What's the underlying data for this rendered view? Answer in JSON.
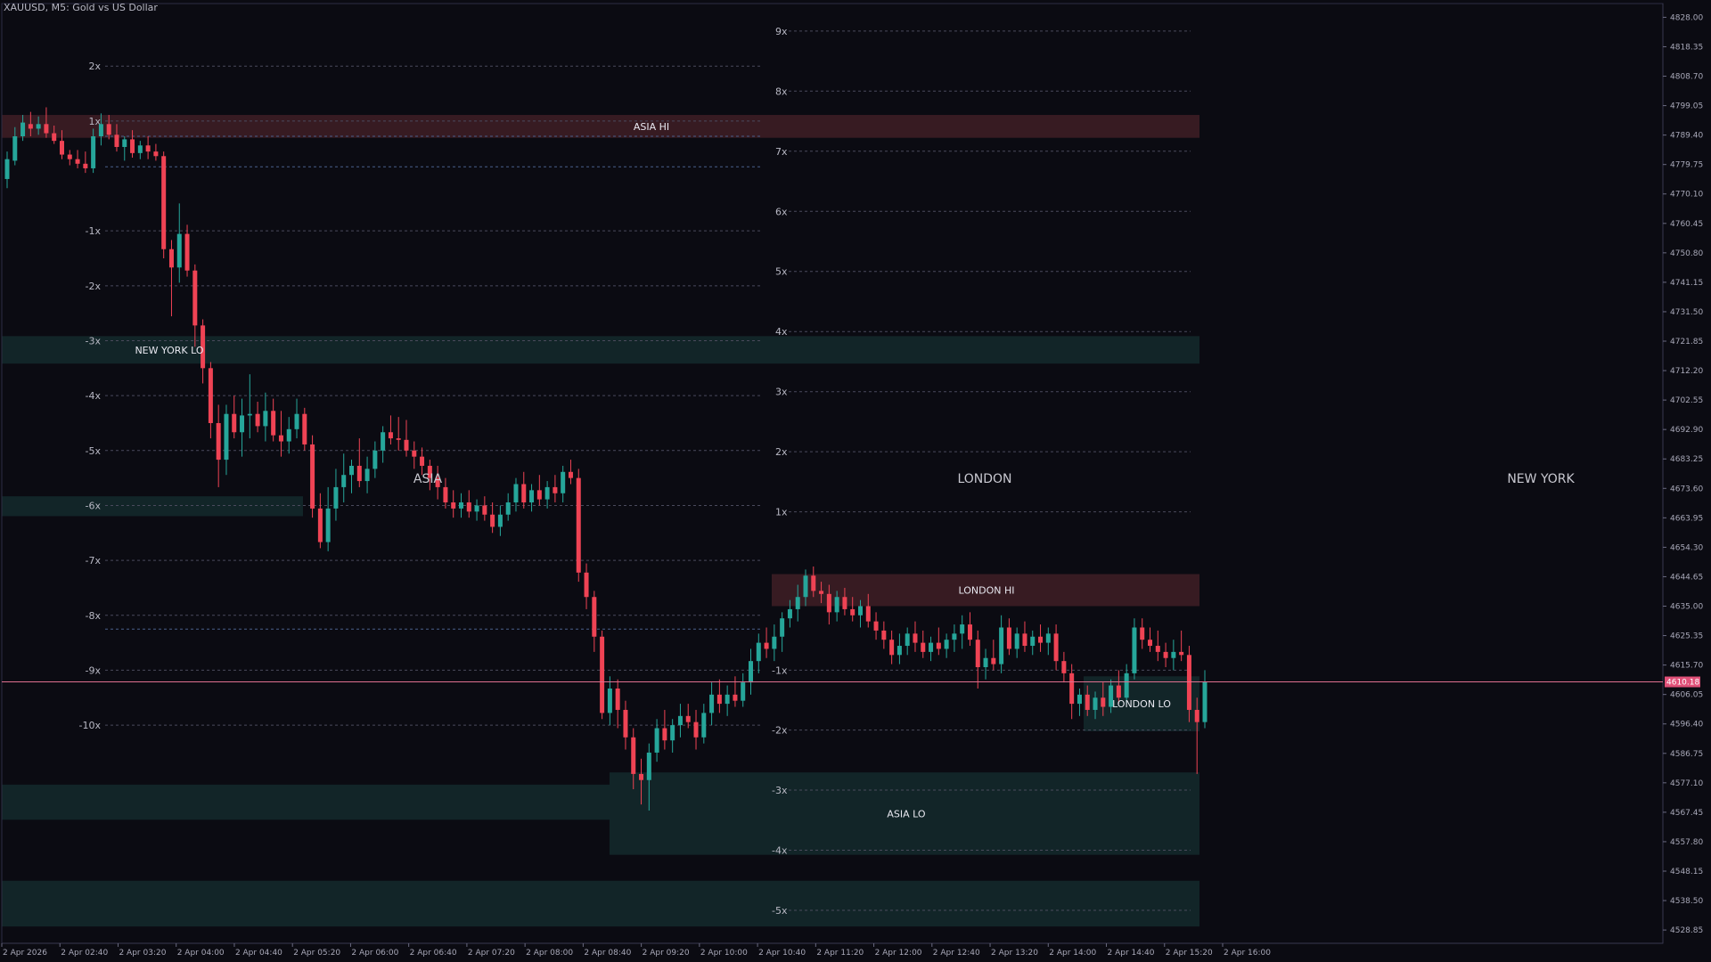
{
  "window": {
    "symbol": "XAUUSD",
    "timeframe": "M5",
    "description": "Gold vs US Dollar",
    "title_text": "XAUUSD, M5:  Gold vs US Dollar"
  },
  "colors": {
    "background": "#0b0b12",
    "bull": "#26a69a",
    "bear": "#ef4354",
    "grid_dash": "#3a3a4a",
    "price_line": "#e07090",
    "price_badge": "#e05078",
    "zone_red": "#3a1c24",
    "zone_green": "#13272a",
    "text": "#c8c8d0",
    "axis": "#2a2a38"
  },
  "price_axis": {
    "labels": [
      "4828.00",
      "4818.35",
      "4808.70",
      "4799.05",
      "4789.40",
      "4779.75",
      "4770.10",
      "4760.45",
      "4750.80",
      "4741.15",
      "4731.50",
      "4721.85",
      "4712.20",
      "4702.55",
      "4692.90",
      "4683.25",
      "4673.60",
      "4663.95",
      "4654.30",
      "4644.65",
      "4635.00",
      "4625.35",
      "4615.70",
      "4606.05",
      "4596.40",
      "4586.75",
      "4577.10",
      "4567.45",
      "4557.80",
      "4548.15",
      "4538.50",
      "4528.85"
    ],
    "current_price": "4610.18"
  },
  "time_axis": {
    "labels": [
      "2 Apr 2026",
      "2 Apr 02:40",
      "2 Apr 03:20",
      "2 Apr 04:00",
      "2 Apr 04:40",
      "2 Apr 05:20",
      "2 Apr 06:00",
      "2 Apr 06:40",
      "2 Apr 07:20",
      "2 Apr 08:00",
      "2 Apr 08:40",
      "2 Apr 09:20",
      "2 Apr 10:00",
      "2 Apr 10:40",
      "2 Apr 11:20",
      "2 Apr 12:00",
      "2 Apr 12:40",
      "2 Apr 13:20",
      "2 Apr 14:00",
      "2 Apr 14:40",
      "2 Apr 15:20",
      "2 Apr 16:00"
    ]
  },
  "sessions": {
    "asia": "ASIA",
    "london": "LONDON",
    "new_york": "NEW YORK"
  },
  "level_labels": {
    "asia_hi": "ASIA HI",
    "asia_lo": "ASIA LO",
    "london_hi": "LONDON HI",
    "london_lo": "LONDON LO",
    "new_york_lo": "NEW YORK LO"
  },
  "ny_projection": {
    "labels": [
      "2x",
      "1x",
      "-1x",
      "-2x",
      "-3x",
      "-4x",
      "-5x",
      "-6x",
      "-7x",
      "-8x",
      "-9x",
      "-10x"
    ],
    "prices": [
      4812.0,
      4794.0,
      4758.0,
      4740.0,
      4722.0,
      4704.0,
      4686.0,
      4668.0,
      4650.0,
      4632.0,
      4614.0,
      4596.0
    ]
  },
  "asia_projection": {
    "labels": [
      "9x",
      "8x",
      "7x",
      "6x",
      "5x",
      "4x",
      "3x",
      "2x",
      "1x"
    ],
    "prices": [
      4823.5,
      4803.8,
      4784.1,
      4764.4,
      4744.7,
      4725.0,
      4705.3,
      4685.6,
      4665.9
    ]
  },
  "london_projection": {
    "labels": [
      "-1x",
      "-2x",
      "-3x",
      "-4x",
      "-5x"
    ],
    "prices": [
      4614.0,
      4594.4,
      4574.7,
      4555.0,
      4535.3
    ]
  },
  "chart_data": {
    "type": "candlestick",
    "symbol": "XAUUSD",
    "timeframe": "M5",
    "ylim": [
      4524.5,
      4832.5
    ],
    "grid": false,
    "current_price": 4610.18,
    "zones": [
      {
        "name": "ASIA HI",
        "top": 4796.0,
        "bottom": 4788.5,
        "color": "zone_red"
      },
      {
        "name": "NEW YORK LO",
        "top": 4723.5,
        "bottom": 4714.5,
        "color": "zone_green"
      },
      {
        "name": "",
        "top": 4671.0,
        "bottom": 4664.5,
        "color": "zone_green"
      },
      {
        "name": "LONDON HI",
        "top": 4645.5,
        "bottom": 4635.0,
        "color": "zone_red"
      },
      {
        "name": "LONDON LO",
        "top": 4612.0,
        "bottom": 4594.0,
        "color": "zone_green"
      },
      {
        "name": "ASIA LO",
        "top": 4580.5,
        "bottom": 4553.5,
        "color": "zone_green"
      },
      {
        "name": "",
        "top": 4576.5,
        "bottom": 4565.0,
        "color": "zone_green"
      },
      {
        "name": "",
        "top": 4545.0,
        "bottom": 4530.0,
        "color": "zone_green"
      }
    ],
    "candles": [
      {
        "o": 4775.0,
        "h": 4784.0,
        "l": 4772.0,
        "c": 4781.5
      },
      {
        "o": 4781.0,
        "h": 4792.0,
        "l": 4779.5,
        "c": 4789.0
      },
      {
        "o": 4789.0,
        "h": 4796.0,
        "l": 4787.5,
        "c": 4793.5
      },
      {
        "o": 4793.0,
        "h": 4797.0,
        "l": 4789.0,
        "c": 4791.5
      },
      {
        "o": 4791.5,
        "h": 4795.5,
        "l": 4789.5,
        "c": 4793.0
      },
      {
        "o": 4793.0,
        "h": 4798.5,
        "l": 4788.5,
        "c": 4790.0
      },
      {
        "o": 4790.0,
        "h": 4792.5,
        "l": 4786.5,
        "c": 4787.5
      },
      {
        "o": 4787.5,
        "h": 4791.0,
        "l": 4781.5,
        "c": 4783.0
      },
      {
        "o": 4783.0,
        "h": 4784.5,
        "l": 4779.5,
        "c": 4781.5
      },
      {
        "o": 4781.5,
        "h": 4784.5,
        "l": 4778.5,
        "c": 4780.0
      },
      {
        "o": 4780.0,
        "h": 4784.0,
        "l": 4777.0,
        "c": 4778.5
      },
      {
        "o": 4778.5,
        "h": 4791.5,
        "l": 4777.0,
        "c": 4789.0
      },
      {
        "o": 4789.0,
        "h": 4796.5,
        "l": 4786.0,
        "c": 4793.0
      },
      {
        "o": 4793.0,
        "h": 4796.0,
        "l": 4788.0,
        "c": 4789.5
      },
      {
        "o": 4789.5,
        "h": 4793.0,
        "l": 4784.0,
        "c": 4785.5
      },
      {
        "o": 4785.5,
        "h": 4789.0,
        "l": 4781.0,
        "c": 4788.0
      },
      {
        "o": 4788.0,
        "h": 4791.0,
        "l": 4782.0,
        "c": 4783.5
      },
      {
        "o": 4783.5,
        "h": 4787.5,
        "l": 4781.5,
        "c": 4786.0
      },
      {
        "o": 4786.0,
        "h": 4789.0,
        "l": 4781.5,
        "c": 4784.0
      },
      {
        "o": 4784.0,
        "h": 4786.5,
        "l": 4781.0,
        "c": 4782.5
      },
      {
        "o": 4782.5,
        "h": 4784.0,
        "l": 4749.0,
        "c": 4752.0
      },
      {
        "o": 4752.0,
        "h": 4755.0,
        "l": 4730.0,
        "c": 4746.0
      },
      {
        "o": 4746.0,
        "h": 4767.0,
        "l": 4741.0,
        "c": 4757.0
      },
      {
        "o": 4757.0,
        "h": 4760.0,
        "l": 4743.0,
        "c": 4745.0
      },
      {
        "o": 4745.0,
        "h": 4747.0,
        "l": 4720.0,
        "c": 4727.0
      },
      {
        "o": 4727.0,
        "h": 4729.0,
        "l": 4708.0,
        "c": 4713.0
      },
      {
        "o": 4713.0,
        "h": 4715.0,
        "l": 4690.0,
        "c": 4695.0
      },
      {
        "o": 4695.0,
        "h": 4701.0,
        "l": 4674.0,
        "c": 4683.0
      },
      {
        "o": 4683.0,
        "h": 4701.0,
        "l": 4678.0,
        "c": 4698.0
      },
      {
        "o": 4698.0,
        "h": 4704.0,
        "l": 4690.0,
        "c": 4692.0
      },
      {
        "o": 4692.0,
        "h": 4703.0,
        "l": 4684.0,
        "c": 4697.5
      },
      {
        "o": 4697.5,
        "h": 4711.0,
        "l": 4690.0,
        "c": 4698.0
      },
      {
        "o": 4698.0,
        "h": 4702.0,
        "l": 4692.0,
        "c": 4694.0
      },
      {
        "o": 4694.0,
        "h": 4705.0,
        "l": 4689.0,
        "c": 4699.0
      },
      {
        "o": 4699.0,
        "h": 4703.0,
        "l": 4689.0,
        "c": 4691.0
      },
      {
        "o": 4691.0,
        "h": 4699.0,
        "l": 4684.0,
        "c": 4689.0
      },
      {
        "o": 4689.0,
        "h": 4697.0,
        "l": 4685.0,
        "c": 4693.0
      },
      {
        "o": 4693.0,
        "h": 4703.0,
        "l": 4690.0,
        "c": 4698.0
      },
      {
        "o": 4698.0,
        "h": 4700.0,
        "l": 4686.0,
        "c": 4688.0
      },
      {
        "o": 4688.0,
        "h": 4691.0,
        "l": 4664.0,
        "c": 4667.0
      },
      {
        "o": 4667.0,
        "h": 4672.0,
        "l": 4654.0,
        "c": 4656.0
      },
      {
        "o": 4656.0,
        "h": 4674.0,
        "l": 4653.0,
        "c": 4667.0
      },
      {
        "o": 4667.0,
        "h": 4680.0,
        "l": 4663.0,
        "c": 4674.0
      },
      {
        "o": 4674.0,
        "h": 4685.0,
        "l": 4669.0,
        "c": 4678.0
      },
      {
        "o": 4678.0,
        "h": 4683.0,
        "l": 4672.0,
        "c": 4681.0
      },
      {
        "o": 4681.0,
        "h": 4690.0,
        "l": 4674.0,
        "c": 4676.0
      },
      {
        "o": 4676.0,
        "h": 4684.0,
        "l": 4672.0,
        "c": 4680.0
      },
      {
        "o": 4680.0,
        "h": 4689.0,
        "l": 4677.0,
        "c": 4686.0
      },
      {
        "o": 4686.0,
        "h": 4694.0,
        "l": 4682.0,
        "c": 4692.0
      },
      {
        "o": 4692.0,
        "h": 4697.5,
        "l": 4688.0,
        "c": 4690.0
      },
      {
        "o": 4690.0,
        "h": 4697.0,
        "l": 4686.0,
        "c": 4689.5
      },
      {
        "o": 4689.5,
        "h": 4696.0,
        "l": 4684.0,
        "c": 4686.0
      },
      {
        "o": 4686.0,
        "h": 4689.0,
        "l": 4680.0,
        "c": 4684.0
      },
      {
        "o": 4684.0,
        "h": 4687.0,
        "l": 4678.0,
        "c": 4681.0
      },
      {
        "o": 4681.0,
        "h": 4683.0,
        "l": 4673.0,
        "c": 4677.0
      },
      {
        "o": 4677.0,
        "h": 4681.0,
        "l": 4670.0,
        "c": 4674.0
      },
      {
        "o": 4674.0,
        "h": 4677.0,
        "l": 4667.0,
        "c": 4669.0
      },
      {
        "o": 4669.0,
        "h": 4673.0,
        "l": 4664.0,
        "c": 4667.0
      },
      {
        "o": 4667.0,
        "h": 4672.0,
        "l": 4664.0,
        "c": 4669.0
      },
      {
        "o": 4669.0,
        "h": 4673.0,
        "l": 4664.0,
        "c": 4666.0
      },
      {
        "o": 4666.0,
        "h": 4670.0,
        "l": 4663.0,
        "c": 4668.0
      },
      {
        "o": 4668.0,
        "h": 4671.0,
        "l": 4663.0,
        "c": 4665.0
      },
      {
        "o": 4665.0,
        "h": 4669.0,
        "l": 4659.0,
        "c": 4661.0
      },
      {
        "o": 4661.0,
        "h": 4668.0,
        "l": 4658.0,
        "c": 4665.0
      },
      {
        "o": 4665.0,
        "h": 4672.0,
        "l": 4663.0,
        "c": 4669.0
      },
      {
        "o": 4669.0,
        "h": 4677.0,
        "l": 4666.0,
        "c": 4675.0
      },
      {
        "o": 4675.0,
        "h": 4679.0,
        "l": 4667.0,
        "c": 4669.0
      },
      {
        "o": 4669.0,
        "h": 4675.0,
        "l": 4666.0,
        "c": 4673.0
      },
      {
        "o": 4673.0,
        "h": 4678.0,
        "l": 4668.0,
        "c": 4670.0
      },
      {
        "o": 4670.0,
        "h": 4676.0,
        "l": 4667.0,
        "c": 4674.0
      },
      {
        "o": 4674.0,
        "h": 4678.0,
        "l": 4669.0,
        "c": 4672.0
      },
      {
        "o": 4672.0,
        "h": 4681.0,
        "l": 4669.0,
        "c": 4679.0
      },
      {
        "o": 4679.0,
        "h": 4683.0,
        "l": 4675.0,
        "c": 4677.0
      },
      {
        "o": 4677.0,
        "h": 4680.0,
        "l": 4643.0,
        "c": 4646.0
      },
      {
        "o": 4646.0,
        "h": 4649.0,
        "l": 4634.0,
        "c": 4638.0
      },
      {
        "o": 4638.0,
        "h": 4640.0,
        "l": 4620.0,
        "c": 4625.0
      },
      {
        "o": 4625.0,
        "h": 4627.0,
        "l": 4598.0,
        "c": 4600.0
      },
      {
        "o": 4600.0,
        "h": 4612.0,
        "l": 4596.0,
        "c": 4608.0
      },
      {
        "o": 4608.0,
        "h": 4611.0,
        "l": 4595.0,
        "c": 4601.0
      },
      {
        "o": 4601.0,
        "h": 4604.0,
        "l": 4588.0,
        "c": 4592.0
      },
      {
        "o": 4592.0,
        "h": 4595.0,
        "l": 4575.0,
        "c": 4580.0
      },
      {
        "o": 4580.0,
        "h": 4585.0,
        "l": 4570.0,
        "c": 4578.0
      },
      {
        "o": 4578.0,
        "h": 4590.0,
        "l": 4568.0,
        "c": 4587.0
      },
      {
        "o": 4587.0,
        "h": 4598.0,
        "l": 4584.0,
        "c": 4595.0
      },
      {
        "o": 4595.0,
        "h": 4601.0,
        "l": 4588.0,
        "c": 4591.0
      },
      {
        "o": 4591.0,
        "h": 4598.0,
        "l": 4587.0,
        "c": 4596.0
      },
      {
        "o": 4596.0,
        "h": 4603.0,
        "l": 4592.0,
        "c": 4599.0
      },
      {
        "o": 4599.0,
        "h": 4603.0,
        "l": 4595.0,
        "c": 4597.0
      },
      {
        "o": 4597.0,
        "h": 4601.0,
        "l": 4588.0,
        "c": 4592.0
      },
      {
        "o": 4592.0,
        "h": 4603.0,
        "l": 4590.0,
        "c": 4600.0
      },
      {
        "o": 4600.0,
        "h": 4610.0,
        "l": 4596.0,
        "c": 4606.0
      },
      {
        "o": 4606.0,
        "h": 4611.0,
        "l": 4600.0,
        "c": 4603.0
      },
      {
        "o": 4603.0,
        "h": 4609.0,
        "l": 4599.0,
        "c": 4606.0
      },
      {
        "o": 4606.0,
        "h": 4612.0,
        "l": 4602.0,
        "c": 4604.0
      },
      {
        "o": 4604.0,
        "h": 4613.0,
        "l": 4602.0,
        "c": 4610.0
      },
      {
        "o": 4610.0,
        "h": 4621.0,
        "l": 4606.0,
        "c": 4617.0
      },
      {
        "o": 4617.0,
        "h": 4626.0,
        "l": 4613.0,
        "c": 4623.0
      },
      {
        "o": 4623.0,
        "h": 4628.0,
        "l": 4618.0,
        "c": 4621.0
      },
      {
        "o": 4621.0,
        "h": 4629.0,
        "l": 4617.0,
        "c": 4625.0
      },
      {
        "o": 4625.0,
        "h": 4633.0,
        "l": 4620.0,
        "c": 4631.0
      },
      {
        "o": 4631.0,
        "h": 4637.0,
        "l": 4628.0,
        "c": 4634.0
      },
      {
        "o": 4634.0,
        "h": 4642.0,
        "l": 4630.0,
        "c": 4638.0
      },
      {
        "o": 4638.0,
        "h": 4647.0,
        "l": 4635.0,
        "c": 4645.0
      },
      {
        "o": 4645.0,
        "h": 4648.0,
        "l": 4638.0,
        "c": 4640.0
      },
      {
        "o": 4640.0,
        "h": 4643.0,
        "l": 4636.0,
        "c": 4639.0
      },
      {
        "o": 4639.0,
        "h": 4642.0,
        "l": 4629.0,
        "c": 4633.0
      },
      {
        "o": 4633.0,
        "h": 4640.0,
        "l": 4630.0,
        "c": 4638.0
      },
      {
        "o": 4638.0,
        "h": 4641.0,
        "l": 4632.0,
        "c": 4634.0
      },
      {
        "o": 4634.0,
        "h": 4638.0,
        "l": 4630.0,
        "c": 4632.0
      },
      {
        "o": 4632.0,
        "h": 4637.0,
        "l": 4628.0,
        "c": 4635.0
      },
      {
        "o": 4635.0,
        "h": 4639.0,
        "l": 4628.0,
        "c": 4630.0
      },
      {
        "o": 4630.0,
        "h": 4633.0,
        "l": 4624.0,
        "c": 4627.0
      },
      {
        "o": 4627.0,
        "h": 4630.0,
        "l": 4621.0,
        "c": 4624.0
      },
      {
        "o": 4624.0,
        "h": 4627.0,
        "l": 4616.0,
        "c": 4619.0
      },
      {
        "o": 4619.0,
        "h": 4626.0,
        "l": 4616.0,
        "c": 4622.0
      },
      {
        "o": 4622.0,
        "h": 4628.0,
        "l": 4619.0,
        "c": 4626.0
      },
      {
        "o": 4626.0,
        "h": 4630.0,
        "l": 4620.0,
        "c": 4623.0
      },
      {
        "o": 4623.0,
        "h": 4627.0,
        "l": 4618.0,
        "c": 4620.0
      },
      {
        "o": 4620.0,
        "h": 4625.0,
        "l": 4617.0,
        "c": 4623.0
      },
      {
        "o": 4623.0,
        "h": 4628.0,
        "l": 4619.0,
        "c": 4621.0
      },
      {
        "o": 4621.0,
        "h": 4626.0,
        "l": 4618.0,
        "c": 4624.0
      },
      {
        "o": 4624.0,
        "h": 4629.0,
        "l": 4620.0,
        "c": 4626.0
      },
      {
        "o": 4626.0,
        "h": 4632.0,
        "l": 4621.0,
        "c": 4629.0
      },
      {
        "o": 4629.0,
        "h": 4633.0,
        "l": 4622.0,
        "c": 4624.0
      },
      {
        "o": 4624.0,
        "h": 4627.0,
        "l": 4608.0,
        "c": 4615.0
      },
      {
        "o": 4615.0,
        "h": 4621.0,
        "l": 4611.0,
        "c": 4618.0
      },
      {
        "o": 4618.0,
        "h": 4624.0,
        "l": 4614.0,
        "c": 4616.0
      },
      {
        "o": 4616.0,
        "h": 4632.0,
        "l": 4613.0,
        "c": 4628.0
      },
      {
        "o": 4628.0,
        "h": 4631.0,
        "l": 4619.0,
        "c": 4621.0
      },
      {
        "o": 4621.0,
        "h": 4628.0,
        "l": 4618.0,
        "c": 4626.0
      },
      {
        "o": 4626.0,
        "h": 4630.0,
        "l": 4620.0,
        "c": 4622.0
      },
      {
        "o": 4622.0,
        "h": 4627.0,
        "l": 4619.0,
        "c": 4625.0
      },
      {
        "o": 4625.0,
        "h": 4629.0,
        "l": 4620.0,
        "c": 4623.0
      },
      {
        "o": 4623.0,
        "h": 4628.0,
        "l": 4619.0,
        "c": 4626.0
      },
      {
        "o": 4626.0,
        "h": 4629.0,
        "l": 4614.0,
        "c": 4617.0
      },
      {
        "o": 4617.0,
        "h": 4620.0,
        "l": 4610.0,
        "c": 4613.0
      },
      {
        "o": 4613.0,
        "h": 4616.0,
        "l": 4598.0,
        "c": 4603.0
      },
      {
        "o": 4603.0,
        "h": 4608.0,
        "l": 4599.0,
        "c": 4606.0
      },
      {
        "o": 4606.0,
        "h": 4609.0,
        "l": 4599.0,
        "c": 4601.0
      },
      {
        "o": 4601.0,
        "h": 4607.0,
        "l": 4598.0,
        "c": 4605.0
      },
      {
        "o": 4605.0,
        "h": 4610.0,
        "l": 4599.0,
        "c": 4602.0
      },
      {
        "o": 4602.0,
        "h": 4611.0,
        "l": 4600.0,
        "c": 4609.0
      },
      {
        "o": 4609.0,
        "h": 4614.0,
        "l": 4603.0,
        "c": 4605.0
      },
      {
        "o": 4605.0,
        "h": 4616.0,
        "l": 4603.0,
        "c": 4613.0
      },
      {
        "o": 4613.0,
        "h": 4631.0,
        "l": 4611.0,
        "c": 4628.0
      },
      {
        "o": 4628.0,
        "h": 4631.0,
        "l": 4621.0,
        "c": 4624.0
      },
      {
        "o": 4624.0,
        "h": 4628.0,
        "l": 4620.0,
        "c": 4622.0
      },
      {
        "o": 4622.0,
        "h": 4627.0,
        "l": 4617.0,
        "c": 4620.0
      },
      {
        "o": 4620.0,
        "h": 4623.0,
        "l": 4615.0,
        "c": 4618.0
      },
      {
        "o": 4618.0,
        "h": 4624.0,
        "l": 4614.0,
        "c": 4620.0
      },
      {
        "o": 4620.0,
        "h": 4627.0,
        "l": 4617.0,
        "c": 4619.0
      },
      {
        "o": 4619.0,
        "h": 4622.0,
        "l": 4597.0,
        "c": 4601.0
      },
      {
        "o": 4601.0,
        "h": 4605.0,
        "l": 4580.0,
        "c": 4597.0
      },
      {
        "o": 4597.0,
        "h": 4614.0,
        "l": 4595.0,
        "c": 4610.18
      }
    ]
  }
}
